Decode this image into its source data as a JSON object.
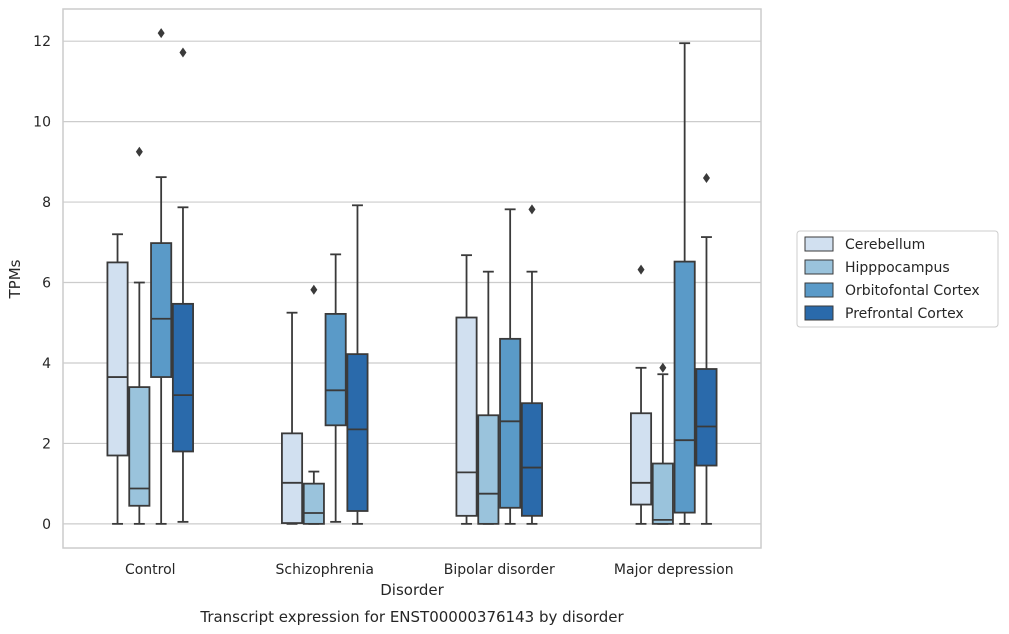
{
  "chart_data": {
    "type": "box",
    "caption": "Transcript expression for ENST00000376143 by disorder",
    "xlabel": "Disorder",
    "ylabel": "TPMs",
    "ylim": [
      -0.6,
      12.8
    ],
    "yticks": [
      0,
      2,
      4,
      6,
      8,
      10,
      12
    ],
    "grid": "horizontal",
    "legend_position": "right",
    "categories": [
      "Control",
      "Schizophrenia",
      "Bipolar disorder",
      "Major depression"
    ],
    "series": [
      {
        "name": "Cerebellum",
        "color": "#d1e0f0",
        "boxes": [
          {
            "whisker_low": 0.0,
            "q1": 1.7,
            "median": 3.65,
            "q3": 6.5,
            "whisker_high": 7.2,
            "outliers": []
          },
          {
            "whisker_low": 0.0,
            "q1": 0.02,
            "median": 1.02,
            "q3": 2.25,
            "whisker_high": 5.25,
            "outliers": []
          },
          {
            "whisker_low": 0.0,
            "q1": 0.2,
            "median": 1.28,
            "q3": 5.13,
            "whisker_high": 6.68,
            "outliers": []
          },
          {
            "whisker_low": 0.0,
            "q1": 0.48,
            "median": 1.02,
            "q3": 2.75,
            "whisker_high": 3.88,
            "outliers": [
              6.32
            ]
          }
        ]
      },
      {
        "name": "Hipppocampus",
        "color": "#9ac3dc",
        "boxes": [
          {
            "whisker_low": 0.0,
            "q1": 0.45,
            "median": 0.88,
            "q3": 3.4,
            "whisker_high": 6.0,
            "outliers": [
              9.25
            ]
          },
          {
            "whisker_low": 0.0,
            "q1": 0.0,
            "median": 0.27,
            "q3": 1.0,
            "whisker_high": 1.3,
            "outliers": [
              5.82
            ]
          },
          {
            "whisker_low": 0.0,
            "q1": 0.0,
            "median": 0.75,
            "q3": 2.7,
            "whisker_high": 6.27,
            "outliers": []
          },
          {
            "whisker_low": 0.0,
            "q1": 0.0,
            "median": 0.1,
            "q3": 1.5,
            "whisker_high": 3.72,
            "outliers": [
              3.88
            ]
          }
        ]
      },
      {
        "name": "Orbitofontal Cortex",
        "color": "#5a9ac8",
        "boxes": [
          {
            "whisker_low": 0.0,
            "q1": 3.65,
            "median": 5.1,
            "q3": 6.98,
            "whisker_high": 8.62,
            "outliers": [
              12.2
            ]
          },
          {
            "whisker_low": 0.05,
            "q1": 2.45,
            "median": 3.32,
            "q3": 5.22,
            "whisker_high": 6.7,
            "outliers": []
          },
          {
            "whisker_low": 0.0,
            "q1": 0.4,
            "median": 2.55,
            "q3": 4.6,
            "whisker_high": 7.82,
            "outliers": []
          },
          {
            "whisker_low": 0.0,
            "q1": 0.28,
            "median": 2.08,
            "q3": 6.52,
            "whisker_high": 11.95,
            "outliers": []
          }
        ]
      },
      {
        "name": "Prefrontal Cortex",
        "color": "#2a6aab",
        "boxes": [
          {
            "whisker_low": 0.05,
            "q1": 1.8,
            "median": 3.2,
            "q3": 5.47,
            "whisker_high": 7.87,
            "outliers": [
              11.72
            ]
          },
          {
            "whisker_low": 0.0,
            "q1": 0.32,
            "median": 2.35,
            "q3": 4.22,
            "whisker_high": 7.92,
            "outliers": []
          },
          {
            "whisker_low": 0.0,
            "q1": 0.2,
            "median": 1.4,
            "q3": 3.0,
            "whisker_high": 6.27,
            "outliers": [
              7.82
            ]
          },
          {
            "whisker_low": 0.0,
            "q1": 1.45,
            "median": 2.42,
            "q3": 3.85,
            "whisker_high": 7.13,
            "outliers": [
              8.6
            ]
          }
        ]
      }
    ]
  }
}
